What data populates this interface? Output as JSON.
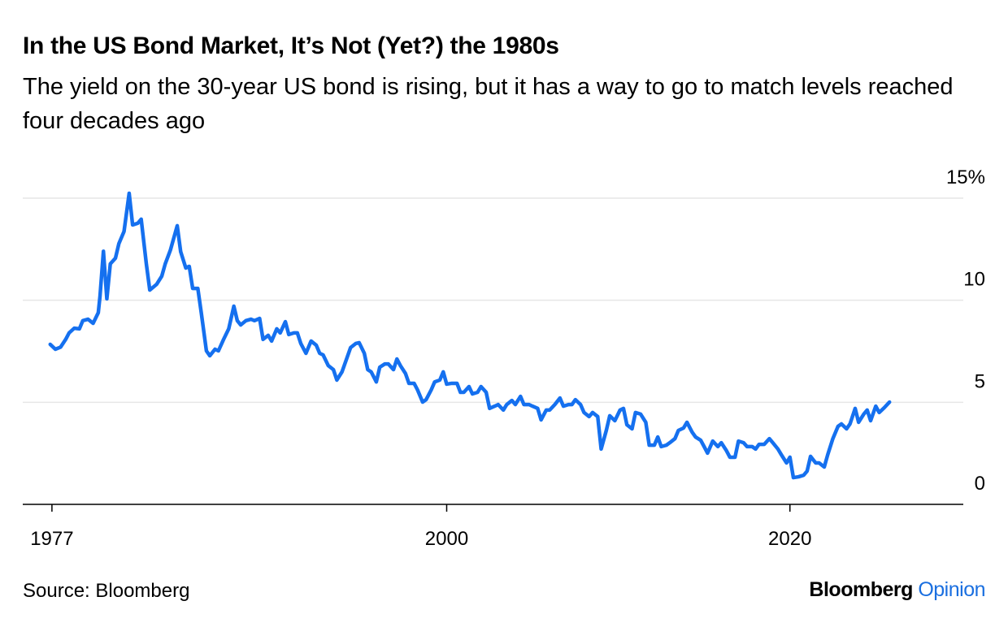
{
  "chart_data": {
    "type": "line",
    "title": "In the US Bond Market, It’s Not (Yet?) the 1980s",
    "subtitle": "The yield on the 30-year US bond is rising, but it has a way to go to match levels reached four decades ago",
    "source": "Source: Bloomberg",
    "logo": [
      "Bloomberg",
      "Opinion"
    ],
    "xlim": [
      1975.3,
      2030.1
    ],
    "xticks": [
      1977,
      2000,
      2020
    ],
    "ylim": [
      0,
      15
    ],
    "yticks": [
      0,
      5,
      10,
      {
        "value": 15,
        "label": "15%"
      }
    ],
    "grid": true,
    "series": [
      {
        "color": "#1570ef",
        "x": [
          1976.9,
          1977.2,
          1977.5,
          1977.8,
          1978.0,
          1978.3,
          1978.6,
          1978.8,
          1979.1,
          1979.4,
          1979.7,
          1979.8,
          1980.0,
          1980.2,
          1980.4,
          1980.7,
          1980.9,
          1981.2,
          1981.5,
          1981.7,
          1982.0,
          1982.2,
          1982.5,
          1982.7,
          1983.1,
          1983.4,
          1983.6,
          1983.9,
          1984.3,
          1984.5,
          1984.8,
          1985.0,
          1985.2,
          1985.5,
          1985.7,
          1986.0,
          1986.2,
          1986.5,
          1986.7,
          1987.0,
          1987.3,
          1987.6,
          1987.8,
          1988.0,
          1988.3,
          1988.6,
          1988.8,
          1989.1,
          1989.3,
          1989.6,
          1989.8,
          1990.1,
          1990.3,
          1990.6,
          1990.8,
          1991.1,
          1991.3,
          1991.5,
          1991.8,
          1992.1,
          1992.4,
          1992.6,
          1992.8,
          1993.1,
          1993.4,
          1993.6,
          1993.9,
          1994.2,
          1994.4,
          1994.7,
          1994.9,
          1995.2,
          1995.4,
          1995.6,
          1995.9,
          1996.1,
          1996.4,
          1996.6,
          1996.9,
          1997.1,
          1997.3,
          1997.6,
          1997.8,
          1998.1,
          1998.3,
          1998.6,
          1998.8,
          1999.1,
          1999.3,
          1999.6,
          1999.8,
          2000.0,
          2000.3,
          2000.6,
          2000.8,
          2001.0,
          2001.3,
          2001.5,
          2001.8,
          2002.0,
          2002.3,
          2002.5,
          2002.8,
          2003.0,
          2003.3,
          2003.5,
          2003.8,
          2004.0,
          2004.3,
          2004.5,
          2004.8,
          2005.0,
          2005.3,
          2005.5,
          2005.8,
          2006.0,
          2006.3,
          2006.6,
          2006.8,
          2007.1,
          2007.3,
          2007.5,
          2007.8,
          2008.0,
          2008.3,
          2008.5,
          2008.8,
          2009.0,
          2009.3,
          2009.5,
          2009.8,
          2010.1,
          2010.3,
          2010.5,
          2010.8,
          2011.0,
          2011.3,
          2011.6,
          2011.8,
          2012.1,
          2012.3,
          2012.5,
          2012.8,
          2013.0,
          2013.3,
          2013.5,
          2013.8,
          2014.0,
          2014.3,
          2014.5,
          2014.8,
          2015.0,
          2015.2,
          2015.5,
          2015.8,
          2016.0,
          2016.3,
          2016.5,
          2016.8,
          2017.0,
          2017.3,
          2017.5,
          2017.8,
          2018.0,
          2018.2,
          2018.5,
          2018.8,
          2019.0,
          2019.3,
          2019.5,
          2019.8,
          2020.0,
          2020.2,
          2020.5,
          2020.8,
          2021.0,
          2021.2,
          2021.5,
          2021.7,
          2022.0,
          2022.2,
          2022.5,
          2022.8,
          2023.0,
          2023.3,
          2023.5,
          2023.8,
          2024.0,
          2024.3,
          2024.5,
          2024.7,
          2025.0,
          2025.2,
          2025.5,
          2025.8
        ],
        "values": [
          7.84,
          7.6,
          7.7,
          8.08,
          8.4,
          8.63,
          8.6,
          9.0,
          9.07,
          8.87,
          9.39,
          10.19,
          12.4,
          10.07,
          11.78,
          12.06,
          12.77,
          13.37,
          15.24,
          13.69,
          13.77,
          13.97,
          11.78,
          10.5,
          10.78,
          11.18,
          11.78,
          12.45,
          13.65,
          12.38,
          11.58,
          11.66,
          10.58,
          10.58,
          9.39,
          7.52,
          7.28,
          7.6,
          7.52,
          8.08,
          8.6,
          9.71,
          9.0,
          8.79,
          9.0,
          9.07,
          9.0,
          9.11,
          8.08,
          8.28,
          8.0,
          8.6,
          8.4,
          8.95,
          8.32,
          8.4,
          8.4,
          7.88,
          7.4,
          8.0,
          7.8,
          7.4,
          7.32,
          6.8,
          6.6,
          6.09,
          6.49,
          7.2,
          7.68,
          7.88,
          7.92,
          7.4,
          6.6,
          6.49,
          6.0,
          6.72,
          6.88,
          6.88,
          6.6,
          7.12,
          6.8,
          6.41,
          5.93,
          5.93,
          5.61,
          5.01,
          5.13,
          5.61,
          6.0,
          6.09,
          6.49,
          5.89,
          5.93,
          5.93,
          5.49,
          5.49,
          5.77,
          5.41,
          5.49,
          5.77,
          5.49,
          4.7,
          4.81,
          4.89,
          4.62,
          4.89,
          5.09,
          4.89,
          5.29,
          4.89,
          4.89,
          4.81,
          4.7,
          4.14,
          4.62,
          4.62,
          4.89,
          5.21,
          4.81,
          4.89,
          4.89,
          5.13,
          4.89,
          4.5,
          4.3,
          4.5,
          4.3,
          2.71,
          3.62,
          4.34,
          4.1,
          4.62,
          4.7,
          3.9,
          3.7,
          4.5,
          4.42,
          4.02,
          2.9,
          2.9,
          3.3,
          2.83,
          2.9,
          3.02,
          3.22,
          3.62,
          3.74,
          4.02,
          3.54,
          3.3,
          3.14,
          2.83,
          2.51,
          3.1,
          2.83,
          3.02,
          2.63,
          2.31,
          2.31,
          3.1,
          3.02,
          2.83,
          2.83,
          2.71,
          2.94,
          2.94,
          3.22,
          3.02,
          2.71,
          2.43,
          2.03,
          2.31,
          1.31,
          1.35,
          1.43,
          1.63,
          2.35,
          2.03,
          2.03,
          1.83,
          2.43,
          3.22,
          3.82,
          3.94,
          3.7,
          3.94,
          4.7,
          4.02,
          4.42,
          4.62,
          4.1,
          4.81,
          4.5,
          4.74,
          5.01
        ]
      }
    ]
  }
}
